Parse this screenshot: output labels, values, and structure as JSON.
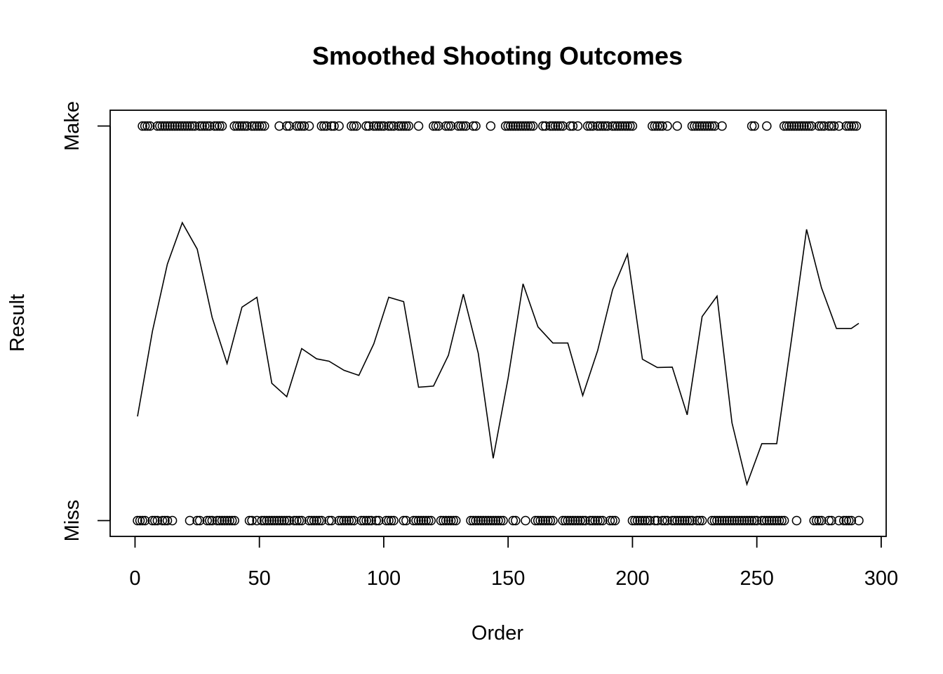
{
  "chart_data": {
    "type": "line",
    "title": "Smoothed Shooting Outcomes",
    "xlabel": "Order",
    "ylabel": "Result",
    "xlim": [
      -10,
      302
    ],
    "ylim": [
      -0.04,
      1.04
    ],
    "x_ticks": [
      0,
      50,
      100,
      150,
      200,
      250,
      300
    ],
    "y_ticks": [
      {
        "value": 0,
        "label": "Miss"
      },
      {
        "value": 1,
        "label": "Make"
      }
    ],
    "grid": false,
    "legend": "none",
    "series": [
      {
        "kind": "points",
        "y": 1,
        "x": [
          3,
          4,
          5,
          6,
          9,
          10,
          11,
          12,
          13,
          14,
          15,
          16,
          17,
          18,
          19,
          20,
          21,
          22,
          23,
          24,
          26,
          27,
          28,
          29,
          30,
          32,
          33,
          34,
          35,
          40,
          41,
          42,
          43,
          44,
          45,
          47,
          48,
          49,
          50,
          51,
          52,
          58,
          61,
          62,
          65,
          66,
          67,
          68,
          70,
          75,
          76,
          77,
          79,
          80,
          82,
          87,
          88,
          89,
          93,
          94,
          96,
          97,
          98,
          99,
          100,
          102,
          103,
          104,
          106,
          107,
          108,
          109,
          110,
          114,
          120,
          121,
          122,
          125,
          126,
          127,
          130,
          131,
          132,
          133,
          136,
          137,
          143,
          149,
          150,
          151,
          152,
          153,
          154,
          155,
          156,
          157,
          158,
          159,
          160,
          164,
          165,
          167,
          168,
          169,
          170,
          171,
          172,
          175,
          176,
          178,
          182,
          183,
          184,
          186,
          187,
          188,
          189,
          190,
          192,
          193,
          194,
          195,
          196,
          197,
          198,
          199,
          200,
          208,
          209,
          210,
          211,
          212,
          214,
          218,
          224,
          225,
          226,
          227,
          228,
          229,
          230,
          231,
          232,
          233,
          236,
          248,
          249,
          254,
          261,
          262,
          263,
          264,
          265,
          266,
          267,
          268,
          269,
          270,
          271,
          272,
          275,
          276,
          277,
          279,
          280,
          281,
          283,
          286,
          287,
          288,
          289,
          290
        ]
      },
      {
        "kind": "points",
        "y": 0,
        "x": [
          1,
          2,
          3,
          4,
          7,
          8,
          9,
          11,
          12,
          13,
          15,
          22,
          25,
          26,
          29,
          30,
          31,
          33,
          34,
          35,
          36,
          37,
          38,
          39,
          40,
          46,
          47,
          49,
          51,
          52,
          53,
          54,
          55,
          56,
          57,
          58,
          59,
          60,
          61,
          62,
          64,
          65,
          66,
          67,
          70,
          71,
          72,
          73,
          74,
          75,
          78,
          79,
          82,
          83,
          84,
          85,
          86,
          87,
          88,
          91,
          92,
          93,
          94,
          95,
          97,
          98,
          101,
          102,
          103,
          104,
          108,
          109,
          112,
          113,
          114,
          115,
          116,
          117,
          118,
          119,
          123,
          124,
          125,
          126,
          127,
          128,
          129,
          135,
          136,
          137,
          138,
          139,
          140,
          141,
          142,
          143,
          144,
          145,
          146,
          147,
          148,
          152,
          153,
          157,
          161,
          162,
          163,
          164,
          165,
          166,
          167,
          168,
          172,
          173,
          174,
          175,
          176,
          177,
          178,
          179,
          180,
          181,
          183,
          184,
          185,
          186,
          187,
          188,
          191,
          192,
          193,
          200,
          201,
          202,
          203,
          204,
          205,
          206,
          207,
          209,
          210,
          212,
          213,
          214,
          216,
          217,
          218,
          219,
          220,
          221,
          222,
          223,
          224,
          226,
          227,
          228,
          232,
          233,
          234,
          235,
          236,
          237,
          238,
          239,
          240,
          241,
          242,
          243,
          244,
          245,
          246,
          247,
          248,
          249,
          250,
          252,
          253,
          254,
          255,
          256,
          257,
          258,
          259,
          260,
          261,
          266,
          273,
          274,
          275,
          276,
          279,
          280,
          283,
          285,
          286,
          287,
          288,
          291
        ]
      },
      {
        "kind": "line",
        "x": [
          1,
          7,
          13,
          19,
          25,
          31,
          37,
          43,
          49,
          55,
          61,
          67,
          73,
          78,
          84,
          90,
          96,
          102,
          108,
          114,
          120,
          126,
          132,
          138,
          144,
          150,
          156,
          162,
          168,
          174,
          180,
          186,
          192,
          198,
          204,
          210,
          216,
          222,
          228,
          234,
          240,
          246,
          252,
          258,
          264,
          270,
          276,
          282,
          288,
          291
        ],
        "y": [
          0.264,
          0.48,
          0.65,
          0.755,
          0.688,
          0.515,
          0.398,
          0.541,
          0.566,
          0.348,
          0.314,
          0.436,
          0.41,
          0.404,
          0.381,
          0.368,
          0.448,
          0.566,
          0.555,
          0.338,
          0.341,
          0.419,
          0.574,
          0.424,
          0.158,
          0.361,
          0.6,
          0.491,
          0.45,
          0.45,
          0.317,
          0.431,
          0.585,
          0.675,
          0.409,
          0.388,
          0.389,
          0.268,
          0.517,
          0.569,
          0.248,
          0.092,
          0.195,
          0.195,
          0.462,
          0.738,
          0.59,
          0.487,
          0.487,
          0.5
        ]
      }
    ]
  }
}
